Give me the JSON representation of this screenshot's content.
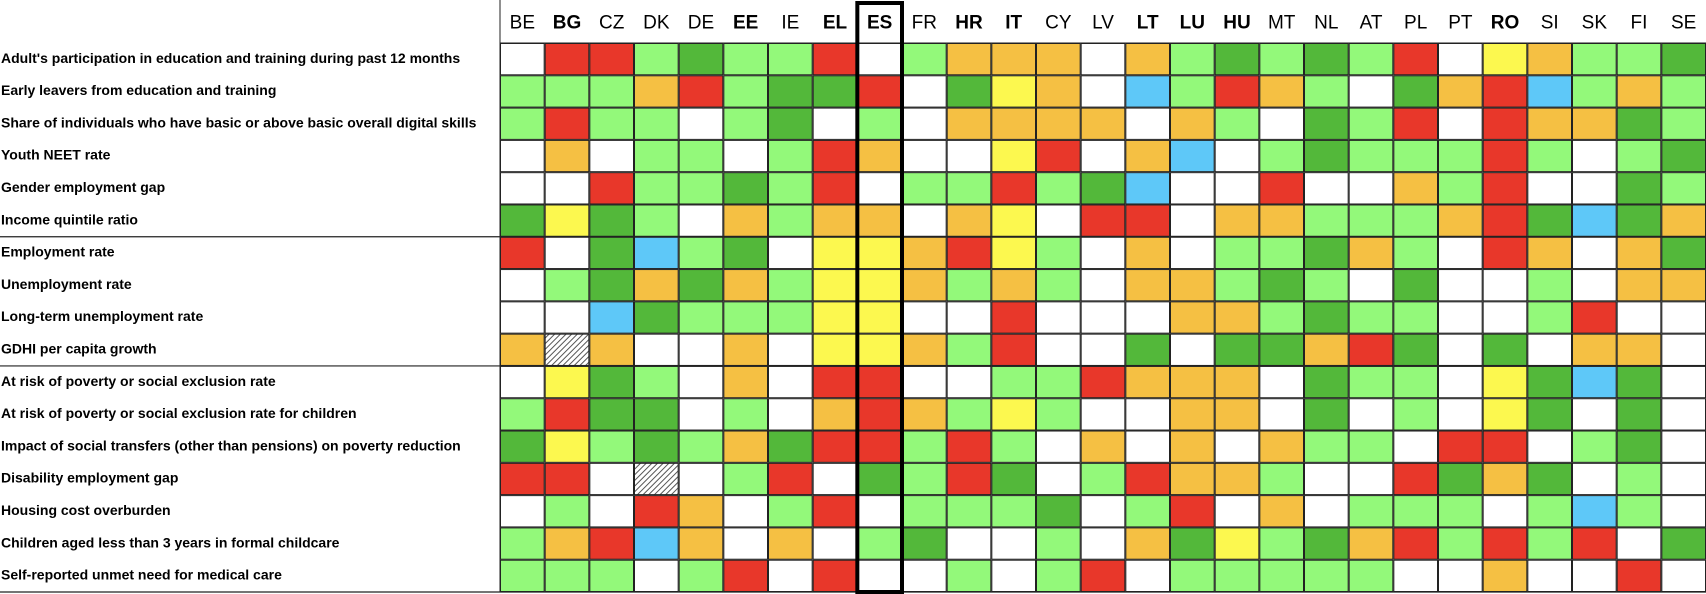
{
  "header": {
    "columns": [
      {
        "label": "BE",
        "bold": false
      },
      {
        "label": "BG",
        "bold": true
      },
      {
        "label": "CZ",
        "bold": false
      },
      {
        "label": "DK",
        "bold": false
      },
      {
        "label": "DE",
        "bold": false
      },
      {
        "label": "EE",
        "bold": true
      },
      {
        "label": "IE",
        "bold": false
      },
      {
        "label": "EL",
        "bold": true
      },
      {
        "label": "ES",
        "bold": true
      },
      {
        "label": "FR",
        "bold": false
      },
      {
        "label": "HR",
        "bold": true
      },
      {
        "label": "IT",
        "bold": true
      },
      {
        "label": "CY",
        "bold": false
      },
      {
        "label": "LV",
        "bold": false
      },
      {
        "label": "LT",
        "bold": true
      },
      {
        "label": "LU",
        "bold": true
      },
      {
        "label": "HU",
        "bold": true
      },
      {
        "label": "MT",
        "bold": false
      },
      {
        "label": "NL",
        "bold": false
      },
      {
        "label": "AT",
        "bold": false
      },
      {
        "label": "PL",
        "bold": false
      },
      {
        "label": "PT",
        "bold": false
      },
      {
        "label": "RO",
        "bold": true
      },
      {
        "label": "SI",
        "bold": false
      },
      {
        "label": "SK",
        "bold": false
      },
      {
        "label": "FI",
        "bold": false
      },
      {
        "label": "SE",
        "bold": false
      }
    ],
    "highlight": "ES"
  },
  "sections": [
    {
      "rows": [
        {
          "label": "Adult's participation in education and training during past 12 months",
          "cells": [
            "#ffffff",
            "#e8372a",
            "#e8372a",
            "#93f97a",
            "#53b83a",
            "#93f97a",
            "#93f97a",
            "#e8372a",
            "#ffffff",
            "#93f97a",
            "#f5c043",
            "#f5c043",
            "#f5c043",
            "#ffffff",
            "#f5c043",
            "#93f97a",
            "#53b83a",
            "#93f97a",
            "#53b83a",
            "#93f97a",
            "#e8372a",
            "#ffffff",
            "#fcf84f",
            "#f5c043",
            "#93f97a",
            "#93f97a",
            "#53b83a"
          ]
        },
        {
          "label": "Early leavers from education and training",
          "cells": [
            "#93f97a",
            "#93f97a",
            "#93f97a",
            "#f5c043",
            "#e8372a",
            "#93f97a",
            "#53b83a",
            "#53b83a",
            "#e8372a",
            "#ffffff",
            "#53b83a",
            "#fcf84f",
            "#f5c043",
            "#ffffff",
            "#5ec8f8",
            "#93f97a",
            "#e8372a",
            "#f5c043",
            "#93f97a",
            "#ffffff",
            "#53b83a",
            "#f5c043",
            "#e8372a",
            "#5ec8f8",
            "#93f97a",
            "#f5c043",
            "#93f97a"
          ]
        },
        {
          "label": "Share of individuals who have basic or above basic overall digital skills",
          "cells": [
            "#93f97a",
            "#e8372a",
            "#93f97a",
            "#93f97a",
            "#ffffff",
            "#93f97a",
            "#53b83a",
            "#ffffff",
            "#93f97a",
            "#ffffff",
            "#f5c043",
            "#f5c043",
            "#f5c043",
            "#f5c043",
            "#ffffff",
            "#f5c043",
            "#93f97a",
            "#ffffff",
            "#53b83a",
            "#93f97a",
            "#e8372a",
            "#ffffff",
            "#e8372a",
            "#f5c043",
            "#f5c043",
            "#53b83a",
            "#93f97a"
          ]
        },
        {
          "label": "Youth NEET rate",
          "cells": [
            "#ffffff",
            "#f5c043",
            "#ffffff",
            "#93f97a",
            "#93f97a",
            "#ffffff",
            "#93f97a",
            "#e8372a",
            "#f5c043",
            "#ffffff",
            "#ffffff",
            "#fcf84f",
            "#e8372a",
            "#ffffff",
            "#f5c043",
            "#5ec8f8",
            "#ffffff",
            "#93f97a",
            "#53b83a",
            "#93f97a",
            "#93f97a",
            "#93f97a",
            "#e8372a",
            "#93f97a",
            "#ffffff",
            "#93f97a",
            "#53b83a"
          ]
        },
        {
          "label": "Gender employment gap",
          "cells": [
            "#ffffff",
            "#ffffff",
            "#e8372a",
            "#93f97a",
            "#93f97a",
            "#53b83a",
            "#93f97a",
            "#e8372a",
            "#ffffff",
            "#93f97a",
            "#93f97a",
            "#e8372a",
            "#93f97a",
            "#53b83a",
            "#5ec8f8",
            "#ffffff",
            "#ffffff",
            "#e8372a",
            "#ffffff",
            "#ffffff",
            "#f5c043",
            "#93f97a",
            "#e8372a",
            "#ffffff",
            "#ffffff",
            "#53b83a",
            "#93f97a"
          ]
        },
        {
          "label": "Income quintile ratio",
          "cells": [
            "#53b83a",
            "#fcf84f",
            "#53b83a",
            "#93f97a",
            "#ffffff",
            "#f5c043",
            "#93f97a",
            "#f5c043",
            "#f5c043",
            "#ffffff",
            "#f5c043",
            "#fcf84f",
            "#ffffff",
            "#e8372a",
            "#e8372a",
            "#ffffff",
            "#f5c043",
            "#f5c043",
            "#93f97a",
            "#93f97a",
            "#93f97a",
            "#f5c043",
            "#e8372a",
            "#53b83a",
            "#5ec8f8",
            "#53b83a",
            "#f5c043"
          ]
        }
      ]
    },
    {
      "rows": [
        {
          "label": "Employment rate",
          "cells": [
            "#e8372a",
            "#ffffff",
            "#53b83a",
            "#5ec8f8",
            "#93f97a",
            "#53b83a",
            "#ffffff",
            "#fcf84f",
            "#fcf84f",
            "#f5c043",
            "#e8372a",
            "#fcf84f",
            "#93f97a",
            "#ffffff",
            "#f5c043",
            "#ffffff",
            "#93f97a",
            "#93f97a",
            "#53b83a",
            "#f5c043",
            "#93f97a",
            "#ffffff",
            "#e8372a",
            "#f5c043",
            "#ffffff",
            "#f5c043",
            "#53b83a"
          ]
        },
        {
          "label": "Unemployment rate",
          "cells": [
            "#ffffff",
            "#93f97a",
            "#53b83a",
            "#f5c043",
            "#53b83a",
            "#f5c043",
            "#93f97a",
            "#fcf84f",
            "#fcf84f",
            "#f5c043",
            "#93f97a",
            "#f5c043",
            "#93f97a",
            "#ffffff",
            "#f5c043",
            "#f5c043",
            "#93f97a",
            "#53b83a",
            "#93f97a",
            "#ffffff",
            "#53b83a",
            "#ffffff",
            "#ffffff",
            "#93f97a",
            "#ffffff",
            "#f5c043",
            "#f5c043"
          ]
        },
        {
          "label": "Long-term unemployment rate",
          "cells": [
            "#ffffff",
            "#ffffff",
            "#5ec8f8",
            "#53b83a",
            "#93f97a",
            "#93f97a",
            "#93f97a",
            "#fcf84f",
            "#fcf84f",
            "#ffffff",
            "#ffffff",
            "#e8372a",
            "#ffffff",
            "#ffffff",
            "#ffffff",
            "#f5c043",
            "#f5c043",
            "#93f97a",
            "#53b83a",
            "#93f97a",
            "#93f97a",
            "#ffffff",
            "#ffffff",
            "#93f97a",
            "#e8372a",
            "#ffffff",
            "#ffffff"
          ]
        },
        {
          "label": "GDHI per capita growth",
          "cells": [
            "#f5c043",
            "hatched",
            "#f5c043",
            "#ffffff",
            "#ffffff",
            "#f5c043",
            "#ffffff",
            "#fcf84f",
            "#fcf84f",
            "#f5c043",
            "#93f97a",
            "#e8372a",
            "#ffffff",
            "#ffffff",
            "#53b83a",
            "#ffffff",
            "#53b83a",
            "#53b83a",
            "#f5c043",
            "#e8372a",
            "#53b83a",
            "#ffffff",
            "#53b83a",
            "#ffffff",
            "#f5c043",
            "#f5c043",
            "#ffffff"
          ]
        }
      ]
    },
    {
      "rows": [
        {
          "label": "At risk of poverty or social exclusion rate",
          "cells": [
            "#ffffff",
            "#fcf84f",
            "#53b83a",
            "#93f97a",
            "#ffffff",
            "#f5c043",
            "#ffffff",
            "#e8372a",
            "#e8372a",
            "#ffffff",
            "#ffffff",
            "#93f97a",
            "#93f97a",
            "#e8372a",
            "#f5c043",
            "#f5c043",
            "#f5c043",
            "#ffffff",
            "#53b83a",
            "#93f97a",
            "#93f97a",
            "#ffffff",
            "#fcf84f",
            "#53b83a",
            "#5ec8f8",
            "#53b83a",
            "#ffffff"
          ]
        },
        {
          "label": "At risk of poverty or social exclusion rate for children",
          "cells": [
            "#93f97a",
            "#e8372a",
            "#53b83a",
            "#53b83a",
            "#ffffff",
            "#93f97a",
            "#ffffff",
            "#f5c043",
            "#e8372a",
            "#f5c043",
            "#93f97a",
            "#fcf84f",
            "#93f97a",
            "#ffffff",
            "#ffffff",
            "#f5c043",
            "#f5c043",
            "#ffffff",
            "#53b83a",
            "#ffffff",
            "#93f97a",
            "#ffffff",
            "#fcf84f",
            "#53b83a",
            "#ffffff",
            "#53b83a",
            "#ffffff"
          ]
        },
        {
          "label": "Impact of social transfers (other than pensions) on poverty reduction",
          "cells": [
            "#53b83a",
            "#fcf84f",
            "#93f97a",
            "#53b83a",
            "#93f97a",
            "#f5c043",
            "#53b83a",
            "#e8372a",
            "#e8372a",
            "#93f97a",
            "#e8372a",
            "#93f97a",
            "#ffffff",
            "#f5c043",
            "#ffffff",
            "#f5c043",
            "#ffffff",
            "#f5c043",
            "#93f97a",
            "#93f97a",
            "#ffffff",
            "#e8372a",
            "#e8372a",
            "#ffffff",
            "#93f97a",
            "#53b83a",
            "#ffffff"
          ]
        },
        {
          "label": "Disability employment gap",
          "cells": [
            "#e8372a",
            "#e8372a",
            "#ffffff",
            "hatched",
            "#ffffff",
            "#93f97a",
            "#e8372a",
            "#ffffff",
            "#53b83a",
            "#93f97a",
            "#e8372a",
            "#53b83a",
            "#ffffff",
            "#93f97a",
            "#e8372a",
            "#f5c043",
            "#f5c043",
            "#93f97a",
            "#ffffff",
            "#ffffff",
            "#e8372a",
            "#53b83a",
            "#f5c043",
            "#53b83a",
            "#ffffff",
            "#93f97a",
            "#ffffff"
          ]
        },
        {
          "label": "Housing cost overburden",
          "cells": [
            "#ffffff",
            "#93f97a",
            "#ffffff",
            "#e8372a",
            "#f5c043",
            "#ffffff",
            "#93f97a",
            "#e8372a",
            "#ffffff",
            "#93f97a",
            "#93f97a",
            "#93f97a",
            "#53b83a",
            "#ffffff",
            "#93f97a",
            "#e8372a",
            "#ffffff",
            "#f5c043",
            "#ffffff",
            "#93f97a",
            "#93f97a",
            "#93f97a",
            "#ffffff",
            "#93f97a",
            "#5ec8f8",
            "#93f97a",
            "#ffffff"
          ]
        },
        {
          "label": "Children aged less than 3 years in formal childcare",
          "cells": [
            "#93f97a",
            "#f5c043",
            "#e8372a",
            "#5ec8f8",
            "#f5c043",
            "#ffffff",
            "#f5c043",
            "#ffffff",
            "#93f97a",
            "#53b83a",
            "#ffffff",
            "#ffffff",
            "#93f97a",
            "#ffffff",
            "#f5c043",
            "#53b83a",
            "#fcf84f",
            "#93f97a",
            "#53b83a",
            "#f5c043",
            "#e8372a",
            "#93f97a",
            "#e8372a",
            "#93f97a",
            "#e8372a",
            "#ffffff",
            "#53b83a"
          ]
        },
        {
          "label": "Self-reported unmet need for medical care",
          "cells": [
            "#93f97a",
            "#93f97a",
            "#93f97a",
            "#ffffff",
            "#93f97a",
            "#e8372a",
            "#ffffff",
            "#e8372a",
            "#ffffff",
            "#ffffff",
            "#93f97a",
            "#ffffff",
            "#93f97a",
            "#e8372a",
            "#ffffff",
            "#93f97a",
            "#93f97a",
            "#93f97a",
            "#93f97a",
            "#93f97a",
            "#ffffff",
            "#ffffff",
            "#f5c043",
            "#ffffff",
            "#ffffff",
            "#e8372a",
            "#ffffff"
          ]
        }
      ]
    }
  ]
}
